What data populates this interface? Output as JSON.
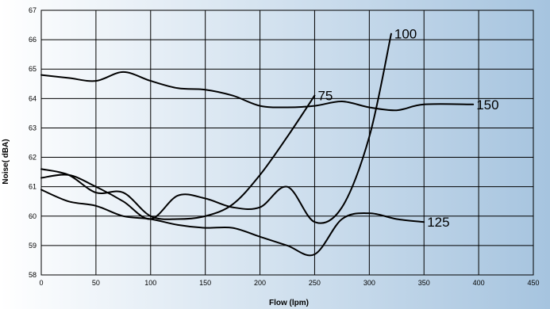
{
  "chart_data": {
    "type": "line",
    "title": "",
    "xlabel": "Flow (lpm)",
    "ylabel": "Noise( dBA)",
    "xlim": [
      0,
      450
    ],
    "ylim": [
      58,
      67
    ],
    "x_ticks": [
      "0",
      "50",
      "100",
      "150",
      "200",
      "250",
      "300",
      "350",
      "400",
      "450"
    ],
    "y_ticks": [
      "58",
      "59",
      "60",
      "61",
      "62",
      "63",
      "64",
      "65",
      "66",
      "67"
    ],
    "grid": true,
    "legend": "none (series labeled at line ends)",
    "background": {
      "left": "#ffffff",
      "right": "#a6c4df"
    },
    "series": [
      {
        "name": "75",
        "points": [
          [
            0,
            61.6
          ],
          [
            25,
            61.4
          ],
          [
            50,
            60.8
          ],
          [
            75,
            60.8
          ],
          [
            100,
            60.0
          ],
          [
            125,
            59.9
          ],
          [
            150,
            60.0
          ],
          [
            175,
            60.4
          ],
          [
            200,
            61.4
          ],
          [
            225,
            62.7
          ],
          [
            250,
            64.1
          ]
        ]
      },
      {
        "name": "100",
        "points": [
          [
            0,
            61.3
          ],
          [
            25,
            61.4
          ],
          [
            50,
            61.0
          ],
          [
            75,
            60.5
          ],
          [
            100,
            59.9
          ],
          [
            125,
            60.7
          ],
          [
            150,
            60.6
          ],
          [
            175,
            60.3
          ],
          [
            200,
            60.3
          ],
          [
            225,
            61.0
          ],
          [
            250,
            59.8
          ],
          [
            275,
            60.3
          ],
          [
            300,
            62.7
          ],
          [
            320,
            66.2
          ]
        ]
      },
      {
        "name": "125",
        "points": [
          [
            0,
            60.9
          ],
          [
            25,
            60.5
          ],
          [
            50,
            60.35
          ],
          [
            75,
            60.0
          ],
          [
            100,
            59.9
          ],
          [
            125,
            59.7
          ],
          [
            150,
            59.6
          ],
          [
            175,
            59.6
          ],
          [
            200,
            59.3
          ],
          [
            225,
            59.0
          ],
          [
            250,
            58.7
          ],
          [
            275,
            59.9
          ],
          [
            300,
            60.1
          ],
          [
            325,
            59.9
          ],
          [
            350,
            59.8
          ]
        ]
      },
      {
        "name": "150",
        "points": [
          [
            0,
            64.8
          ],
          [
            25,
            64.7
          ],
          [
            50,
            64.6
          ],
          [
            75,
            64.9
          ],
          [
            100,
            64.6
          ],
          [
            125,
            64.35
          ],
          [
            150,
            64.3
          ],
          [
            175,
            64.1
          ],
          [
            200,
            63.75
          ],
          [
            225,
            63.7
          ],
          [
            250,
            63.75
          ],
          [
            275,
            63.9
          ],
          [
            300,
            63.7
          ],
          [
            325,
            63.6
          ],
          [
            350,
            63.8
          ],
          [
            395,
            63.8
          ]
        ]
      }
    ]
  }
}
